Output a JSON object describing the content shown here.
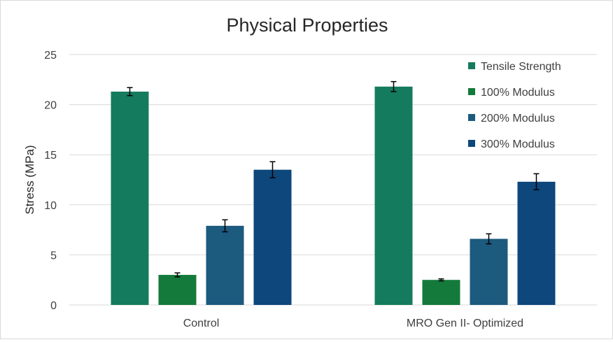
{
  "chart_data": {
    "type": "bar",
    "title": "Physical Properties",
    "xlabel": "",
    "ylabel": "Stress (MPa)",
    "ylim": [
      0,
      25
    ],
    "yticks": [
      0,
      5,
      10,
      15,
      20,
      25
    ],
    "grid": true,
    "legend_position": "right",
    "categories": [
      "Control",
      "MRO Gen II- Optimized"
    ],
    "series": [
      {
        "name": "Tensile Strength",
        "color": "#147b5e",
        "values": [
          21.3,
          21.8
        ],
        "errors": [
          0.4,
          0.5
        ]
      },
      {
        "name": "100% Modulus",
        "color": "#137a3b",
        "values": [
          3.0,
          2.5
        ],
        "errors": [
          0.2,
          0.1
        ]
      },
      {
        "name": "200% Modulus",
        "color": "#1c5a7e",
        "values": [
          7.9,
          6.6
        ],
        "errors": [
          0.6,
          0.5
        ]
      },
      {
        "name": "300% Modulus",
        "color": "#0d477b",
        "values": [
          13.5,
          12.3
        ],
        "errors": [
          0.8,
          0.8
        ]
      }
    ]
  }
}
